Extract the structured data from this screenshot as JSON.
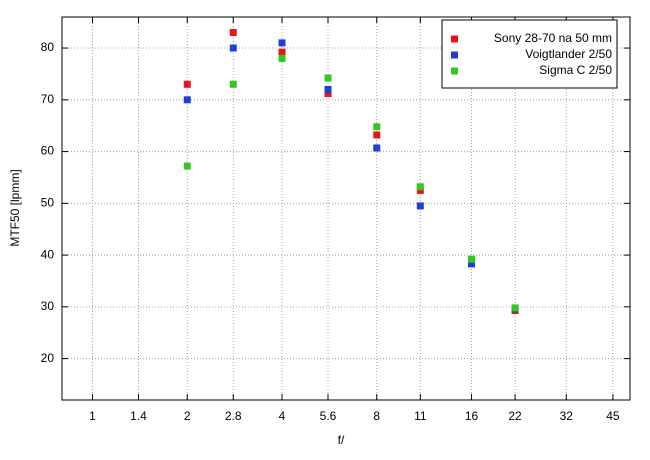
{
  "chart_data": {
    "type": "scatter",
    "xlabel": "f/",
    "ylabel": "MTF50 [lpmm]",
    "x": [
      2,
      2.8,
      4,
      5.6,
      8,
      11,
      16,
      22
    ],
    "series": [
      {
        "name": "Sony 28-70 na 50 mm",
        "color": "#e8151b",
        "values": [
          73,
          83,
          79.2,
          71.2,
          63.2,
          52.5,
          38.6,
          29.3
        ]
      },
      {
        "name": "Voigtlander 2/50",
        "color": "#1f3fd6",
        "values": [
          70,
          80,
          81,
          72,
          60.7,
          49.5,
          38.3,
          29.6
        ]
      },
      {
        "name": "Sigma C 2/50",
        "color": "#32c81e",
        "values": [
          57.2,
          73,
          78,
          74.2,
          64.8,
          53.2,
          39.2,
          29.8
        ]
      }
    ],
    "xscale": "log",
    "xlim": [
      0.8,
      51
    ],
    "xticks": [
      1,
      1.4,
      2,
      2.8,
      4,
      5.6,
      8,
      11,
      16,
      22,
      32,
      45
    ],
    "ylim": [
      12,
      86
    ],
    "yticks": [
      20,
      30,
      40,
      50,
      60,
      70,
      80
    ],
    "grid": true,
    "legend_loc": "upper right"
  }
}
